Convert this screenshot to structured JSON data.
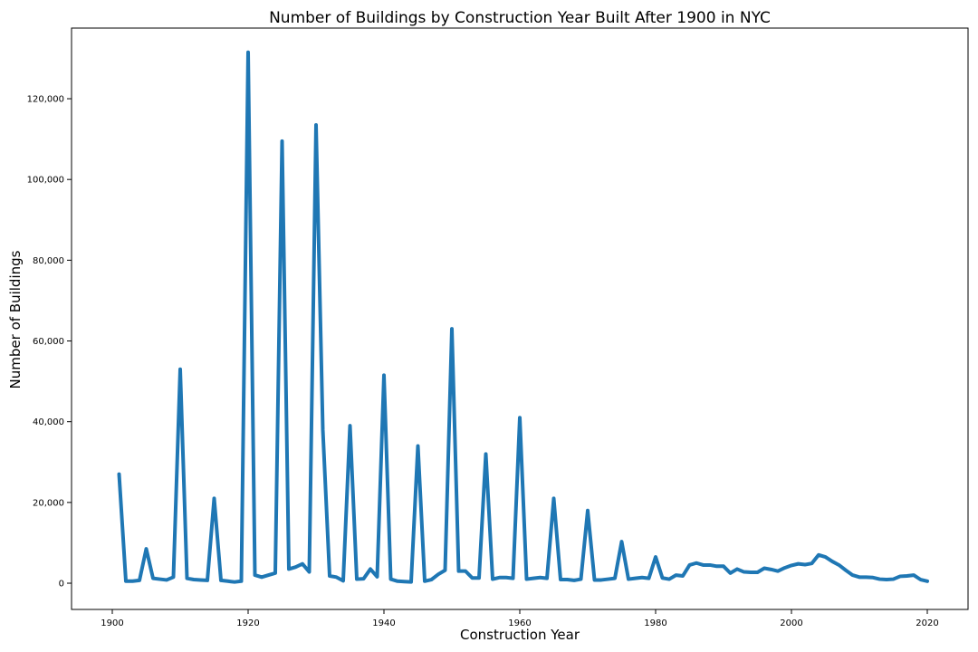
{
  "chart_data": {
    "type": "line",
    "title": "Number of Buildings by Construction Year Built After 1900 in NYC",
    "xlabel": "Construction Year",
    "ylabel": "Number of Buildings",
    "xlim": [
      1894,
      2026
    ],
    "ylim": [
      -6500,
      137500
    ],
    "xticks": [
      1900,
      1920,
      1940,
      1960,
      1980,
      2000,
      2020
    ],
    "xtick_labels": [
      "1900",
      "1920",
      "1940",
      "1960",
      "1980",
      "2000",
      "2020"
    ],
    "yticks": [
      0,
      20000,
      40000,
      60000,
      80000,
      100000,
      120000
    ],
    "ytick_labels": [
      "0",
      "20,000",
      "40,000",
      "60,000",
      "80,000",
      "100,000",
      "120,000"
    ],
    "grid": false,
    "legend": "none",
    "line_color": "#1f77b4",
    "x": [
      1901,
      1902,
      1903,
      1904,
      1905,
      1906,
      1907,
      1908,
      1909,
      1910,
      1911,
      1912,
      1913,
      1914,
      1915,
      1916,
      1917,
      1918,
      1919,
      1920,
      1921,
      1922,
      1923,
      1924,
      1925,
      1926,
      1927,
      1928,
      1929,
      1930,
      1931,
      1932,
      1933,
      1934,
      1935,
      1936,
      1937,
      1938,
      1939,
      1940,
      1941,
      1942,
      1943,
      1944,
      1945,
      1946,
      1947,
      1948,
      1949,
      1950,
      1951,
      1952,
      1953,
      1954,
      1955,
      1956,
      1957,
      1958,
      1959,
      1960,
      1961,
      1962,
      1963,
      1964,
      1965,
      1966,
      1967,
      1968,
      1969,
      1970,
      1971,
      1972,
      1973,
      1974,
      1975,
      1976,
      1977,
      1978,
      1979,
      1980,
      1981,
      1982,
      1983,
      1984,
      1985,
      1986,
      1987,
      1988,
      1989,
      1990,
      1991,
      1992,
      1993,
      1994,
      1995,
      1996,
      1997,
      1998,
      1999,
      2000,
      2001,
      2002,
      2003,
      2004,
      2005,
      2006,
      2007,
      2008,
      2009,
      2010,
      2011,
      2012,
      2013,
      2014,
      2015,
      2016,
      2017,
      2018,
      2019,
      2020
    ],
    "y": [
      27000,
      500,
      500,
      700,
      8500,
      1200,
      1000,
      800,
      1500,
      53000,
      1200,
      900,
      800,
      700,
      21000,
      700,
      500,
      300,
      500,
      131500,
      2000,
      1500,
      2000,
      2500,
      109500,
      3500,
      4000,
      4800,
      2800,
      113500,
      38000,
      1800,
      1500,
      600,
      39000,
      1000,
      1100,
      3500,
      1600,
      51500,
      1000,
      500,
      400,
      300,
      34000,
      500,
      900,
      2200,
      3200,
      63000,
      3000,
      3000,
      1300,
      1300,
      32000,
      1000,
      1400,
      1400,
      1200,
      41000,
      1000,
      1200,
      1400,
      1200,
      21000,
      900,
      900,
      700,
      1000,
      18000,
      800,
      800,
      1000,
      1200,
      10300,
      1000,
      1200,
      1400,
      1200,
      6500,
      1300,
      1000,
      2000,
      1800,
      4500,
      5000,
      4500,
      4500,
      4200,
      4200,
      2500,
      3500,
      2800,
      2700,
      2700,
      3700,
      3400,
      3000,
      3800,
      4400,
      4800,
      4600,
      4900,
      7000,
      6500,
      5400,
      4500,
      3200,
      2000,
      1500,
      1500,
      1400,
      1000,
      900,
      1000,
      1700,
      1800,
      2000,
      900,
      500
    ]
  }
}
